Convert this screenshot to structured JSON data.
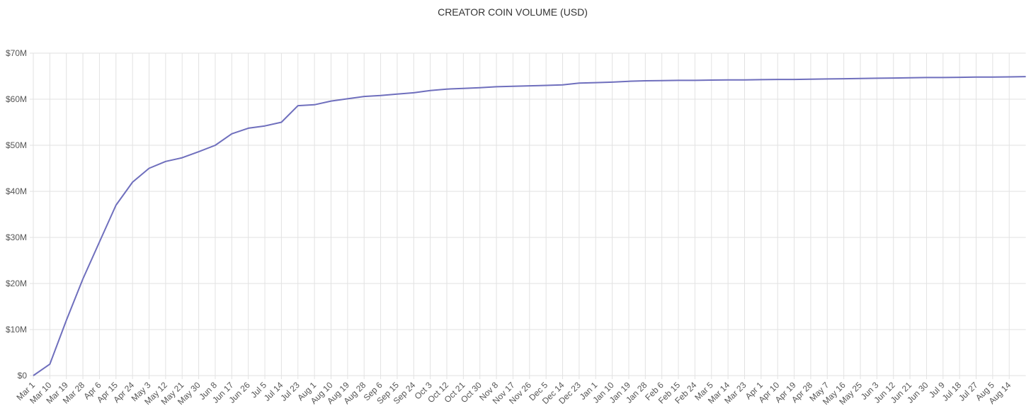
{
  "chart_data": {
    "type": "line",
    "title": "CREATOR COIN VOLUME (USD)",
    "categories": [
      "Mar 1",
      "Mar 10",
      "Mar 19",
      "Mar 28",
      "Apr 6",
      "Apr 15",
      "Apr 24",
      "May 3",
      "May 12",
      "May 21",
      "May 30",
      "Jun 8",
      "Jun 17",
      "Jun 26",
      "Jul 5",
      "Jul 14",
      "Jul 23",
      "Aug 1",
      "Aug 10",
      "Aug 19",
      "Aug 28",
      "Sep 6",
      "Sep 15",
      "Sep 24",
      "Oct 3",
      "Oct 12",
      "Oct 21",
      "Oct 30",
      "Nov 8",
      "Nov 17",
      "Nov 26",
      "Dec 5",
      "Dec 14",
      "Dec 23",
      "Jan 1",
      "Jan 10",
      "Jan 19",
      "Jan 28",
      "Feb 6",
      "Feb 15",
      "Feb 24",
      "Mar 5",
      "Mar 14",
      "Mar 23",
      "Apr 1",
      "Apr 10",
      "Apr 19",
      "Apr 28",
      "May 7",
      "May 16",
      "May 25",
      "Jun 3",
      "Jun 12",
      "Jun 21",
      "Jun 30",
      "Jul 9",
      "Jul 18",
      "Jul 27",
      "Aug 5",
      "Aug 14",
      null
    ],
    "values": [
      0,
      2.5,
      12,
      21,
      29,
      37,
      42,
      45,
      46.5,
      47.3,
      48.6,
      50,
      52.5,
      53.7,
      54.2,
      55,
      58.6,
      58.8,
      59.6,
      60.1,
      60.6,
      60.8,
      61.1,
      61.4,
      61.9,
      62.2,
      62.35,
      62.5,
      62.7,
      62.8,
      62.9,
      63,
      63.1,
      63.5,
      63.6,
      63.7,
      63.9,
      64,
      64.05,
      64.1,
      64.1,
      64.15,
      64.2,
      64.2,
      64.25,
      64.3,
      64.3,
      64.35,
      64.4,
      64.45,
      64.5,
      64.55,
      64.6,
      64.65,
      64.7,
      64.7,
      64.75,
      64.8,
      64.8,
      64.85,
      64.9
    ],
    "color": "#6f6fbd",
    "ylim": [
      0,
      70
    ],
    "yticks": [
      {
        "value": 0,
        "label": "$0"
      },
      {
        "value": 10,
        "label": "$10M"
      },
      {
        "value": 20,
        "label": "$20M"
      },
      {
        "value": 30,
        "label": "$30M"
      },
      {
        "value": 40,
        "label": "$40M"
      },
      {
        "value": 50,
        "label": "$50M"
      },
      {
        "value": 60,
        "label": "$60M"
      },
      {
        "value": 70,
        "label": "$70M"
      }
    ],
    "grid": true
  }
}
